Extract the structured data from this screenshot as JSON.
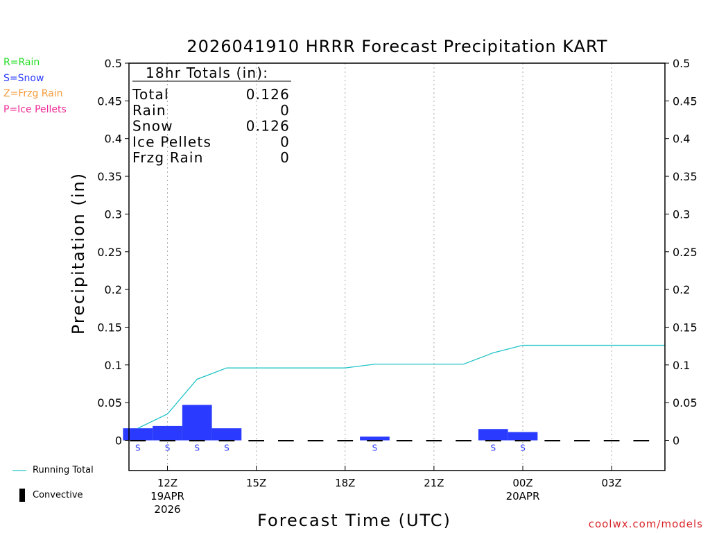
{
  "legend_types": {
    "rain": {
      "text": "R=Rain",
      "color": "#22dd22"
    },
    "snow": {
      "text": "S=Snow",
      "color": "#2a3bff"
    },
    "frzg": {
      "text": "Z=Frzg Rain",
      "color": "#f59b3a"
    },
    "ice": {
      "text": "P=Ice Pellets",
      "color": "#ee2b96"
    }
  },
  "totals_box": {
    "title": "18hr Totals (in):",
    "rows": [
      {
        "label": "Total",
        "value": "0.126"
      },
      {
        "label": "Rain",
        "value": "0"
      },
      {
        "label": "Snow",
        "value": "0.126"
      },
      {
        "label": "Ice Pellets",
        "value": "0"
      },
      {
        "label": "Frzg Rain",
        "value": "0"
      }
    ]
  },
  "bottom_legend": {
    "running_total": "Running Total",
    "convective": "Convective",
    "running_total_color": "#22c4c8"
  },
  "watermark": "coolwx.com/models",
  "chart_data": {
    "type": "bar",
    "title": "2026041910 HRRR Forecast Precipitation KART",
    "xlabel": "Forecast Time (UTC)",
    "ylabel": "Precipitation (in)",
    "ylim": [
      -0.04,
      0.5
    ],
    "yticks": [
      "0.5",
      "0.45",
      "0.4",
      "0.35",
      "0.3",
      "0.25",
      "0.2",
      "0.15",
      "0.1",
      "0.05",
      "0"
    ],
    "ytick_values": [
      0.5,
      0.45,
      0.4,
      0.35,
      0.3,
      0.25,
      0.2,
      0.15,
      0.1,
      0.05,
      0
    ],
    "xlim_hours": [
      10.7,
      28.8
    ],
    "xticks": [
      {
        "hour": 12,
        "label": "12Z",
        "sub": [
          "19APR",
          "2026"
        ]
      },
      {
        "hour": 15,
        "label": "15Z",
        "sub": []
      },
      {
        "hour": 18,
        "label": "18Z",
        "sub": []
      },
      {
        "hour": 21,
        "label": "21Z",
        "sub": []
      },
      {
        "hour": 24,
        "label": "00Z",
        "sub": [
          "20APR"
        ]
      },
      {
        "hour": 27,
        "label": "03Z",
        "sub": []
      }
    ],
    "grid": "vertical dotted",
    "hours": [
      11,
      12,
      13,
      14,
      15,
      16,
      17,
      18,
      19,
      20,
      21,
      22,
      23,
      24,
      25,
      26,
      27,
      28
    ],
    "series": [
      {
        "name": "Snow",
        "type": "bar",
        "color": "#2a3bff",
        "values": [
          0.016,
          0.019,
          0.047,
          0.016,
          0,
          0,
          0,
          0,
          0.005,
          0,
          0,
          0,
          0.015,
          0.011,
          0,
          0,
          0,
          0
        ]
      },
      {
        "name": "Running Total",
        "type": "line",
        "color": "#22c4c8",
        "values": [
          0.016,
          0.035,
          0.081,
          0.096,
          0.096,
          0.096,
          0.096,
          0.096,
          0.101,
          0.101,
          0.101,
          0.101,
          0.116,
          0.126,
          0.126,
          0.126,
          0.126,
          0.126
        ]
      }
    ],
    "ptype_labels": [
      {
        "hour": 11,
        "text": "S"
      },
      {
        "hour": 12,
        "text": "S"
      },
      {
        "hour": 13,
        "text": "S"
      },
      {
        "hour": 14,
        "text": "S"
      },
      {
        "hour": 19,
        "text": "S"
      },
      {
        "hour": 23,
        "text": "S"
      },
      {
        "hour": 24,
        "text": "S"
      }
    ]
  }
}
